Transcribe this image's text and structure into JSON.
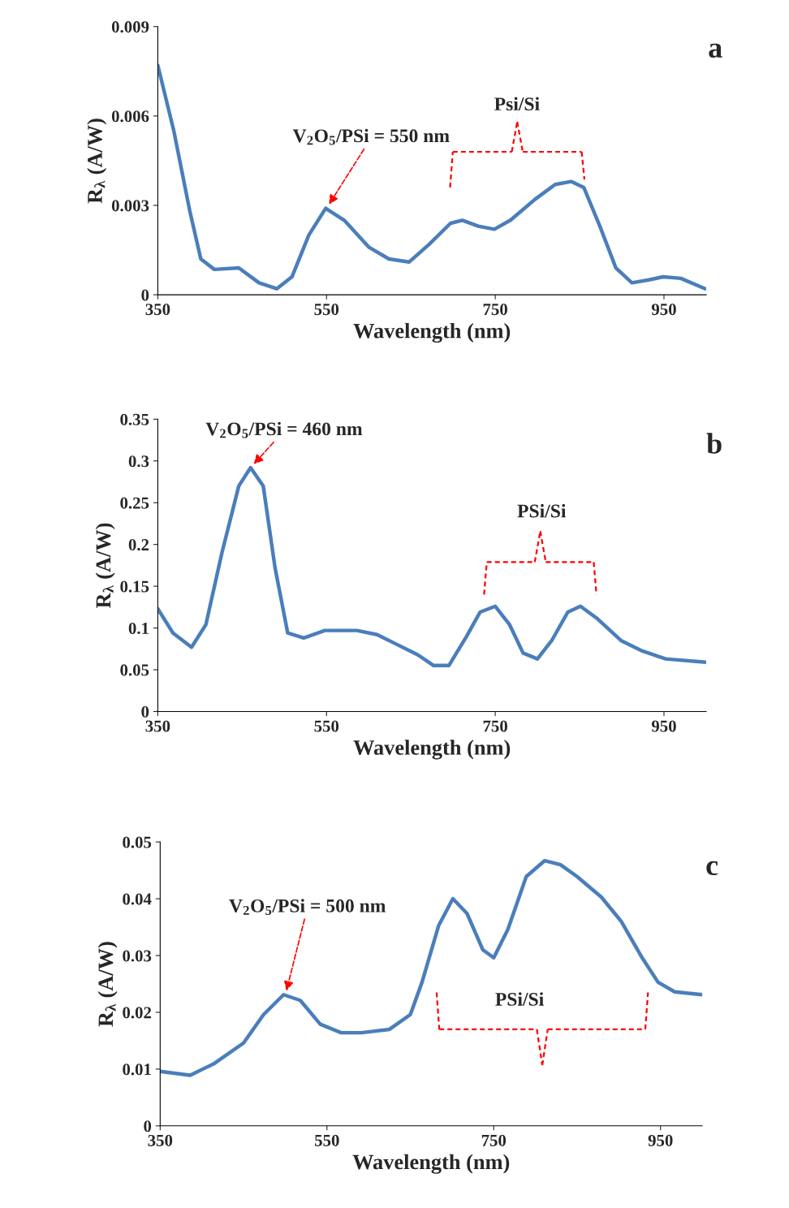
{
  "chart_data": [
    {
      "type": "line",
      "title": "a",
      "xlabel": "Wavelength (nm)",
      "ylabel": "R$_{λ}$ (A/W)",
      "xlim": [
        350,
        1000
      ],
      "xticks": [
        350,
        550,
        750,
        950
      ],
      "ylim": [
        0,
        0.009
      ],
      "yticks": [
        0,
        0.003,
        0.006,
        0.009
      ],
      "grid": false,
      "legend": false,
      "x": [
        350,
        369,
        388,
        401,
        417,
        446,
        470,
        491,
        509,
        529,
        549,
        571,
        600,
        624,
        648,
        672,
        697,
        711,
        730,
        749,
        768,
        797,
        821,
        840,
        855,
        874,
        893,
        912,
        932,
        949,
        970,
        999
      ],
      "series": [
        {
          "color": "#4a7ebb",
          "values": [
            0.0077,
            0.0055,
            0.0028,
            0.0012,
            0.00085,
            0.0009,
            0.0004,
            0.0002,
            0.0006,
            0.002,
            0.0029,
            0.0025,
            0.0016,
            0.0012,
            0.0011,
            0.0017,
            0.0024,
            0.0025,
            0.0023,
            0.0022,
            0.0025,
            0.0032,
            0.0037,
            0.0038,
            0.0036,
            0.0023,
            0.0009,
            0.0004,
            0.0005,
            0.0006,
            0.00055,
            0.0002
          ]
        }
      ],
      "annotations": [
        {
          "text": "V$_{2}$O$_{5}$/PSi = 550 nm",
          "x": 550,
          "y": 0.0029
        },
        "Psi/Si"
      ]
    },
    {
      "type": "line",
      "title": "b",
      "xlabel": "Wavelength (nm)",
      "ylabel": "R$_{λ}$ (A/W)",
      "xlim": [
        350,
        1000
      ],
      "xticks": [
        350,
        550,
        750,
        950
      ],
      "ylim": [
        0,
        0.35
      ],
      "yticks": [
        0,
        0.05,
        0.1,
        0.15,
        0.2,
        0.25,
        0.3,
        0.35
      ],
      "grid": false,
      "legend": false,
      "x": [
        350,
        368,
        390,
        407,
        426,
        446,
        460,
        475,
        489,
        504,
        523,
        548,
        586,
        610,
        634,
        658,
        677,
        695,
        716,
        732,
        750,
        767,
        783,
        800,
        817,
        836,
        851,
        870,
        899,
        923,
        952,
        1000
      ],
      "series": [
        {
          "color": "#4a7ebb",
          "values": [
            0.123,
            0.094,
            0.077,
            0.104,
            0.19,
            0.27,
            0.292,
            0.27,
            0.172,
            0.094,
            0.088,
            0.097,
            0.097,
            0.092,
            0.08,
            0.068,
            0.055,
            0.055,
            0.09,
            0.119,
            0.126,
            0.104,
            0.07,
            0.063,
            0.085,
            0.119,
            0.126,
            0.112,
            0.085,
            0.073,
            0.063,
            0.059
          ]
        }
      ],
      "annotations": [
        {
          "text": "V$_{2}$O$_{5}$/PSi = 460 nm",
          "x": 460,
          "y": 0.292
        },
        "PSi/Si"
      ]
    },
    {
      "type": "line",
      "title": "c",
      "xlabel": "Wavelength (nm)",
      "ylabel": "R$_{λ}$ (A/W)",
      "xlim": [
        350,
        1000
      ],
      "xticks": [
        350,
        550,
        750,
        950
      ],
      "ylim": [
        0,
        0.05
      ],
      "yticks": [
        0,
        0.01,
        0.02,
        0.03,
        0.04,
        0.05
      ],
      "grid": false,
      "legend": false,
      "x": [
        350,
        386,
        415,
        450,
        474,
        498,
        518,
        542,
        567,
        591,
        625,
        650,
        664,
        684,
        701,
        718,
        737,
        750,
        767,
        789,
        811,
        830,
        850,
        879,
        903,
        928,
        947,
        967,
        1000
      ],
      "series": [
        {
          "color": "#4a7ebb",
          "values": [
            0.0096,
            0.0089,
            0.011,
            0.0146,
            0.0196,
            0.0231,
            0.0221,
            0.0179,
            0.0164,
            0.0164,
            0.017,
            0.0196,
            0.0253,
            0.0353,
            0.04,
            0.0374,
            0.031,
            0.0296,
            0.0346,
            0.0439,
            0.0467,
            0.046,
            0.0439,
            0.0403,
            0.036,
            0.0296,
            0.0253,
            0.0236,
            0.0231
          ]
        }
      ],
      "annotations": [
        {
          "text": "V$_{2}$O$_{5}$/PSi = 500 nm",
          "x": 500,
          "y": 0.023
        },
        "PSi/Si"
      ]
    }
  ]
}
